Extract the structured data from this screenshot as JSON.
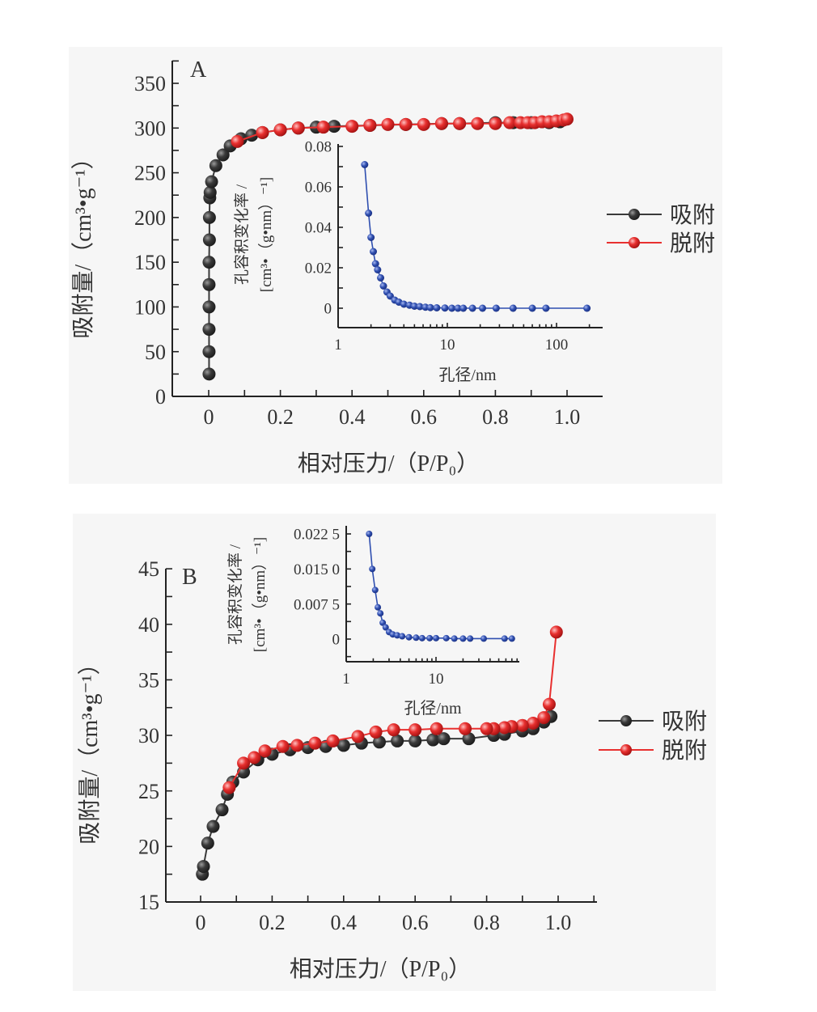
{
  "chart_data": [
    {
      "panel_label": "A",
      "type": "line",
      "xlabel": "相对压力/（P/P₀）",
      "ylabel": "吸附量/（cm³•g⁻¹）",
      "xlim": [
        -0.1,
        1.1
      ],
      "ylim": [
        0,
        350
      ],
      "xticks": [
        {
          "v": 0,
          "label": "0"
        },
        {
          "v": 0.2,
          "label": "0.2"
        },
        {
          "v": 0.4,
          "label": "0.4"
        },
        {
          "v": 0.6,
          "label": "0.6"
        },
        {
          "v": 0.8,
          "label": "0.8"
        },
        {
          "v": 1.0,
          "label": "1.0"
        }
      ],
      "yticks": [
        {
          "v": 0,
          "label": "0"
        },
        {
          "v": 50,
          "label": "50"
        },
        {
          "v": 100,
          "label": "100"
        },
        {
          "v": 150,
          "label": "150"
        },
        {
          "v": 200,
          "label": "200"
        },
        {
          "v": 250,
          "label": "250"
        },
        {
          "v": 300,
          "label": "300"
        },
        {
          "v": 350,
          "label": "350"
        }
      ],
      "legend_position": "right",
      "series": [
        {
          "name": "吸附",
          "color": "#3a3a3a",
          "points": [
            [
              0.001,
              25
            ],
            [
              0.001,
              50
            ],
            [
              0.001,
              75
            ],
            [
              0.001,
              100
            ],
            [
              0.001,
              125
            ],
            [
              0.001,
              150
            ],
            [
              0.002,
              175
            ],
            [
              0.002,
              200
            ],
            [
              0.003,
              222
            ],
            [
              0.004,
              228
            ],
            [
              0.008,
              240
            ],
            [
              0.02,
              258
            ],
            [
              0.04,
              270
            ],
            [
              0.06,
              280
            ],
            [
              0.09,
              288
            ],
            [
              0.12,
              292
            ],
            [
              0.15,
              295
            ],
            [
              0.2,
              298
            ],
            [
              0.25,
              300
            ],
            [
              0.3,
              301
            ],
            [
              0.35,
              302
            ],
            [
              0.45,
              303
            ],
            [
              0.55,
              304
            ],
            [
              0.65,
              305
            ],
            [
              0.7,
              305
            ],
            [
              0.8,
              306
            ],
            [
              0.85,
              306
            ],
            [
              0.9,
              306
            ],
            [
              0.95,
              306
            ],
            [
              0.98,
              307
            ]
          ]
        },
        {
          "name": "脱附",
          "color": "#e8302f",
          "points": [
            [
              0.08,
              285
            ],
            [
              0.15,
              295
            ],
            [
              0.2,
              298
            ],
            [
              0.25,
              300
            ],
            [
              0.32,
              301
            ],
            [
              0.4,
              302
            ],
            [
              0.45,
              303
            ],
            [
              0.5,
              304
            ],
            [
              0.55,
              304
            ],
            [
              0.6,
              304
            ],
            [
              0.65,
              305
            ],
            [
              0.7,
              305
            ],
            [
              0.75,
              305
            ],
            [
              0.8,
              305
            ],
            [
              0.84,
              306
            ],
            [
              0.87,
              306
            ],
            [
              0.89,
              306
            ],
            [
              0.91,
              306
            ],
            [
              0.93,
              307
            ],
            [
              0.95,
              307
            ],
            [
              0.97,
              308
            ],
            [
              0.99,
              309
            ],
            [
              1.0,
              310
            ]
          ]
        }
      ],
      "inset": {
        "type": "line",
        "xscale": "log",
        "xlabel": "孔径/nm",
        "ylabel_lines": [
          "孔容积变化率 /",
          "[cm³•（g•nm）⁻¹]"
        ],
        "ylim": [
          -0.0096,
          0.08
        ],
        "xticks": [
          {
            "v": 1,
            "label": "1"
          },
          {
            "v": 10,
            "label": "10"
          },
          {
            "v": 100,
            "label": "100"
          }
        ],
        "yticks": [
          {
            "v": 0,
            "label": "0"
          },
          {
            "v": 0.02,
            "label": "0.02"
          },
          {
            "v": 0.04,
            "label": "0.04"
          },
          {
            "v": 0.06,
            "label": "0.06"
          },
          {
            "v": 0.08,
            "label": "0.08"
          }
        ],
        "color": "#2f4fb0",
        "points": [
          [
            1.75,
            0.071
          ],
          [
            1.9,
            0.047
          ],
          [
            2.0,
            0.035
          ],
          [
            2.1,
            0.028
          ],
          [
            2.2,
            0.022
          ],
          [
            2.3,
            0.019
          ],
          [
            2.45,
            0.015
          ],
          [
            2.6,
            0.011
          ],
          [
            2.8,
            0.008
          ],
          [
            3.0,
            0.006
          ],
          [
            3.3,
            0.004
          ],
          [
            3.6,
            0.003
          ],
          [
            4,
            0.002
          ],
          [
            4.5,
            0.0015
          ],
          [
            5,
            0.001
          ],
          [
            5.6,
            0.0008
          ],
          [
            6.3,
            0.0005
          ],
          [
            7,
            0.0003
          ],
          [
            8,
            0.0002
          ],
          [
            9.5,
            0.0001
          ],
          [
            11,
            0
          ],
          [
            12.5,
            0
          ],
          [
            14,
            0
          ],
          [
            17,
            0
          ],
          [
            21,
            0
          ],
          [
            28,
            0
          ],
          [
            40,
            0
          ],
          [
            60,
            0
          ],
          [
            80,
            0
          ],
          [
            190,
            0
          ]
        ]
      }
    },
    {
      "panel_label": "B",
      "type": "line",
      "xlabel": "相对压力/（P/P₀）",
      "ylabel": "吸附量/（cm³•g⁻¹）",
      "xlim": [
        -0.1,
        1.1
      ],
      "ylim": [
        15,
        45
      ],
      "xticks": [
        {
          "v": 0,
          "label": "0"
        },
        {
          "v": 0.2,
          "label": "0.2"
        },
        {
          "v": 0.4,
          "label": "0.4"
        },
        {
          "v": 0.6,
          "label": "0.6"
        },
        {
          "v": 0.8,
          "label": "0.8"
        },
        {
          "v": 1.0,
          "label": "1.0"
        }
      ],
      "yticks": [
        {
          "v": 15,
          "label": "15"
        },
        {
          "v": 20,
          "label": "20"
        },
        {
          "v": 25,
          "label": "25"
        },
        {
          "v": 30,
          "label": "30"
        },
        {
          "v": 35,
          "label": "35"
        },
        {
          "v": 40,
          "label": "40"
        },
        {
          "v": 45,
          "label": "45"
        }
      ],
      "legend_position": "right",
      "series": [
        {
          "name": "吸附",
          "color": "#3a3a3a",
          "points": [
            [
              0.005,
              17.5
            ],
            [
              0.008,
              18.2
            ],
            [
              0.02,
              20.3
            ],
            [
              0.035,
              21.8
            ],
            [
              0.06,
              23.3
            ],
            [
              0.075,
              24.7
            ],
            [
              0.09,
              25.8
            ],
            [
              0.12,
              26.7
            ],
            [
              0.16,
              27.8
            ],
            [
              0.2,
              28.3
            ],
            [
              0.25,
              28.7
            ],
            [
              0.3,
              28.9
            ],
            [
              0.35,
              29.0
            ],
            [
              0.4,
              29.1
            ],
            [
              0.45,
              29.3
            ],
            [
              0.5,
              29.4
            ],
            [
              0.55,
              29.5
            ],
            [
              0.6,
              29.5
            ],
            [
              0.65,
              29.6
            ],
            [
              0.68,
              29.7
            ],
            [
              0.75,
              29.7
            ],
            [
              0.82,
              30.0
            ],
            [
              0.85,
              30.1
            ],
            [
              0.9,
              30.4
            ],
            [
              0.93,
              30.6
            ],
            [
              0.96,
              31.2
            ],
            [
              0.98,
              31.7
            ]
          ]
        },
        {
          "name": "脱附",
          "color": "#e8302f",
          "points": [
            [
              0.995,
              39.3
            ],
            [
              0.975,
              32.8
            ],
            [
              0.96,
              31.6
            ],
            [
              0.93,
              31.1
            ],
            [
              0.9,
              30.9
            ],
            [
              0.87,
              30.8
            ],
            [
              0.85,
              30.7
            ],
            [
              0.82,
              30.6
            ],
            [
              0.8,
              30.6
            ],
            [
              0.74,
              30.6
            ],
            [
              0.66,
              30.6
            ],
            [
              0.6,
              30.5
            ],
            [
              0.54,
              30.5
            ],
            [
              0.49,
              30.3
            ],
            [
              0.44,
              29.9
            ],
            [
              0.37,
              29.5
            ],
            [
              0.32,
              29.3
            ],
            [
              0.27,
              29.1
            ],
            [
              0.23,
              29.0
            ],
            [
              0.18,
              28.6
            ],
            [
              0.15,
              28.0
            ],
            [
              0.12,
              27.5
            ],
            [
              0.08,
              25.3
            ]
          ]
        }
      ],
      "inset": {
        "type": "line",
        "xscale": "log",
        "xlabel": "孔径/nm",
        "ylabel_lines": [
          "孔容积变化率 /",
          "[cm³•（g•nm）⁻¹]"
        ],
        "ylim": [
          -0.0045,
          0.0255
        ],
        "xticks": [
          {
            "v": 1,
            "label": "1"
          },
          {
            "v": 10,
            "label": "10"
          }
        ],
        "yticks": [
          {
            "v": 0,
            "label": "0"
          },
          {
            "v": 0.0075,
            "label": "0.007 5"
          },
          {
            "v": 0.015,
            "label": "0.015 0"
          },
          {
            "v": 0.0225,
            "label": "0.022 5"
          }
        ],
        "color": "#2f4fb0",
        "points": [
          [
            1.8,
            0.0225
          ],
          [
            1.95,
            0.015
          ],
          [
            2.1,
            0.0105
          ],
          [
            2.25,
            0.0068
          ],
          [
            2.4,
            0.0055
          ],
          [
            2.55,
            0.0035
          ],
          [
            2.75,
            0.0025
          ],
          [
            3.0,
            0.0015
          ],
          [
            3.3,
            0.001
          ],
          [
            3.7,
            0.0008
          ],
          [
            4.2,
            0.0006
          ],
          [
            5,
            0.0004
          ],
          [
            6,
            0.0003
          ],
          [
            7,
            0.0002
          ],
          [
            8.5,
            0.0002
          ],
          [
            10,
            0.0002
          ],
          [
            13,
            0.0002
          ],
          [
            16,
            0.0001
          ],
          [
            20,
            0.0001
          ],
          [
            24,
            0.0001
          ],
          [
            34,
            0.0001
          ],
          [
            58,
            0.0001
          ],
          [
            70,
            0.0001
          ]
        ]
      }
    }
  ]
}
